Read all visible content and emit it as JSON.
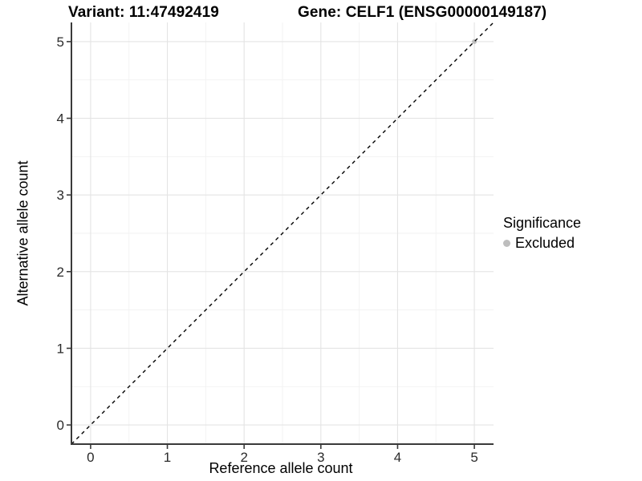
{
  "chart_data": {
    "type": "scatter",
    "title_variant": "Variant: 11:47492419",
    "title_gene": "Gene: CELF1 (ENSG00000149187)",
    "xlabel": "Reference allele count",
    "ylabel": "Alternative allele count",
    "xlim": [
      -0.25,
      5.25
    ],
    "ylim": [
      -0.25,
      5.25
    ],
    "xticks": [
      0,
      1,
      2,
      3,
      4,
      5
    ],
    "yticks": [
      0,
      1,
      2,
      3,
      4,
      5
    ],
    "grid": true,
    "minor_grid": true,
    "identity_line": {
      "style": "dashed",
      "color": "#000000",
      "x": [
        -0.25,
        5.25
      ],
      "y": [
        -0.25,
        5.25
      ]
    },
    "series": [
      {
        "name": "Excluded",
        "color": "#bebebe",
        "points": [
          [
            5,
            5
          ]
        ]
      }
    ],
    "legend": {
      "title": "Significance",
      "position": "right",
      "items": [
        {
          "label": "Excluded",
          "color": "#bebebe"
        }
      ]
    }
  },
  "colors": {
    "background": "#ffffff",
    "major_grid": "#e4e4e4",
    "minor_grid": "#f2f2f2",
    "axis_line": "#3a3a3a",
    "tick_label": "#2b2b2b",
    "title_text": "#000000",
    "point": "#bebebe"
  }
}
